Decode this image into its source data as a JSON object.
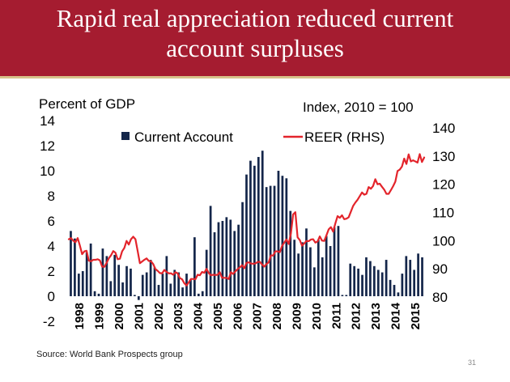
{
  "slide": {
    "title_line1": "Rapid real appreciation reduced current",
    "title_line2": "account surpluses",
    "source": "Source: World Bank Prospects group",
    "page_number": "31",
    "title_band_color": "#a51c30",
    "accent_rule_color": "#d8c28a"
  },
  "chart_data": {
    "type": "bar+line",
    "left_axis_label": "Percent of GDP",
    "right_axis_label": "Index, 2010 = 100",
    "left_ylim": [
      -2,
      14
    ],
    "left_ticks": [
      -2,
      0,
      2,
      4,
      6,
      8,
      10,
      12,
      14
    ],
    "right_ylim": [
      80,
      140
    ],
    "right_ticks": [
      80,
      90,
      100,
      110,
      120,
      130,
      140
    ],
    "x_tick_labels": [
      "1998",
      "1999",
      "2000",
      "2001",
      "2002",
      "2003",
      "2004",
      "2005",
      "2006",
      "2007",
      "2008",
      "2009",
      "2010",
      "2011",
      "2012",
      "2013",
      "2014",
      "2015"
    ],
    "legend": [
      "Current Account",
      "REER (RHS)"
    ],
    "grid": false,
    "bar_color": "#14264a",
    "line_color": "#e3242b",
    "current_account": [
      5.2,
      4.6,
      1.8,
      2.0,
      3.5,
      4.2,
      0.4,
      0.2,
      3.8,
      3.2,
      1.2,
      3.3,
      2.5,
      1.1,
      2.4,
      2.2,
      0.1,
      -0.3,
      1.7,
      1.9,
      2.9,
      2.3,
      0.9,
      1.8,
      3.2,
      1.0,
      2.1,
      1.9,
      0.7,
      1.8,
      1.3,
      4.7,
      0.2,
      0.4,
      3.7,
      7.2,
      5.1,
      5.9,
      6.0,
      6.3,
      6.1,
      5.2,
      5.7,
      7.5,
      9.7,
      10.8,
      10.4,
      11.1,
      11.6,
      8.7,
      8.8,
      8.8,
      10.0,
      9.6,
      9.4,
      6.8,
      4.5,
      3.4,
      4.3,
      5.4,
      3.9,
      2.3,
      4.5,
      3.1,
      4.8,
      4.0,
      5.5,
      5.6,
      0.1,
      0.1,
      2.6,
      2.4,
      2.2,
      1.7,
      3.1,
      2.8,
      2.4,
      2.1,
      1.9,
      2.9,
      1.3,
      0.9,
      0.3,
      1.8,
      3.2,
      2.9,
      2.1,
      3.4,
      3.1
    ],
    "reer_rhs": [
      100.5,
      100.9,
      100.0,
      99.4,
      100.9,
      98.2,
      95.2,
      96.2,
      96.4,
      92.9,
      92.7,
      93.2,
      93.2,
      93.4,
      93.0,
      90.8,
      90.7,
      92.1,
      93.7,
      94.8,
      96.3,
      95.7,
      93.4,
      93.6,
      96.2,
      97.4,
      99.9,
      98.6,
      100.5,
      101.4,
      100.5,
      96.3,
      92.0,
      92.6,
      93.2,
      93.7,
      92.8,
      92.7,
      91.7,
      89.9,
      89.3,
      88.5,
      88.4,
      89.6,
      88.9,
      88.4,
      88.4,
      87.9,
      88.8,
      88.4,
      86.7,
      86.3,
      84.9,
      84.1,
      85.2,
      86.4,
      86.4,
      86.3,
      87.9,
      87.7,
      88.9,
      88.6,
      90.0,
      88.5,
      87.7,
      87.9,
      87.8,
      87.9,
      88.8,
      86.8,
      86.8,
      86.8,
      86.4,
      88.8,
      88.2,
      89.1,
      89.9,
      90.5,
      91.3,
      90.2,
      92.1,
      92.3,
      91.9,
      91.8,
      91.9,
      92.4,
      92.5,
      91.5,
      90.8,
      91.7,
      92.3,
      94.8,
      94.7,
      96.2,
      96.2,
      95.9,
      98.1,
      99.3,
      100.4,
      98.8,
      102.6,
      109.3,
      110.1,
      101.2,
      100.2,
      98.2,
      99.0,
      99.9,
      99.8,
      100.4,
      100.5,
      99.3,
      99.7,
      101.5,
      100.0,
      99.9,
      101.9,
      104.0,
      104.8,
      103.2,
      106.1,
      108.7,
      108.1,
      109.0,
      107.6,
      107.8,
      108.3,
      110.3,
      112.3,
      113.5,
      114.5,
      115.8,
      117.1,
      116.3,
      116.6,
      119.0,
      118.4,
      119.4,
      121.8,
      120.0,
      120.2,
      119.1,
      118.1,
      116.6,
      116.6,
      117.9,
      119.3,
      120.9,
      124.7,
      125.2,
      126.3,
      129.1,
      127.2,
      130.6,
      128.1,
      128.5,
      128.1,
      127.7,
      130.7,
      127.9,
      129.5
    ]
  }
}
